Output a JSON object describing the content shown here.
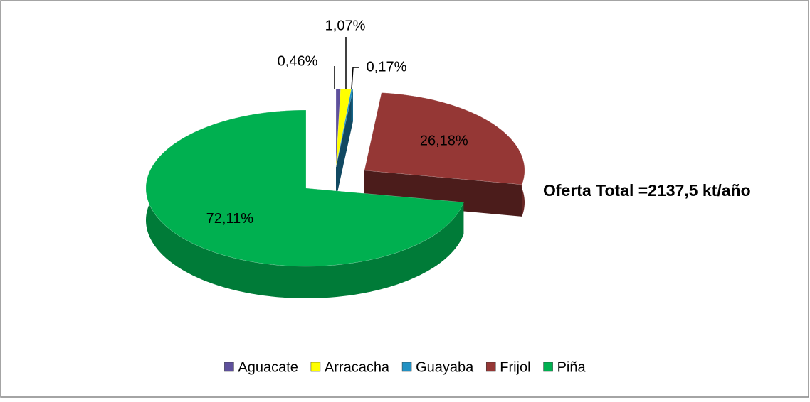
{
  "chart_data": {
    "type": "pie",
    "categories": [
      "Aguacate",
      "Arracacha",
      "Guayaba",
      "Frijol",
      "Piña"
    ],
    "values": [
      0.46,
      1.07,
      0.17,
      26.18,
      72.11
    ],
    "value_labels": [
      "0,46%",
      "1,07%",
      "0,17%",
      "26,18%",
      "72,11%"
    ],
    "colors": [
      "#5e509c",
      "#ffff00",
      "#2291c3",
      "#953735",
      "#00b050"
    ],
    "annotation": "Oferta Total =2137,5 kt/año",
    "legend": "bottom"
  }
}
